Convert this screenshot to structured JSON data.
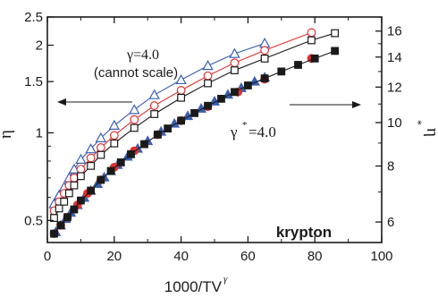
{
  "chart_data": {
    "type": "scatter",
    "xlabel": "1000/TV",
    "xlabel_sup": "γ",
    "ylabel_left": "η",
    "ylabel_right": "η",
    "ylabel_right_sup": "*",
    "xlim": [
      0,
      100
    ],
    "ylim_left": [
      0.42,
      2.5
    ],
    "ylim_right": [
      5.4,
      17.2
    ],
    "yscale": "log",
    "x_ticks": [
      0,
      20,
      40,
      60,
      80,
      100
    ],
    "y_ticks_left": [
      0.5,
      1,
      1.5,
      2,
      2.5
    ],
    "y_ticks_left_labels": [
      "0.5",
      "1",
      "1.5",
      "2",
      "2.5"
    ],
    "y_ticks_right": [
      6,
      8,
      10,
      12,
      14,
      16
    ],
    "grid": false,
    "annotations": {
      "gamma_line1": "γ=4.0",
      "gamma_line2": "(cannot scale)",
      "gamma_star_symbol": "γ",
      "gamma_star_sup": "*",
      "gamma_star_value": "=4.0",
      "material": "krypton"
    },
    "series": [
      {
        "axis": "left",
        "marker": "triangle-open",
        "color": "#3a5fb0",
        "line": true,
        "x": [
          2,
          3.5,
          5,
          6.5,
          8,
          10,
          13,
          16,
          20,
          26,
          32,
          40,
          48,
          56,
          65
        ],
        "y": [
          0.57,
          0.61,
          0.65,
          0.7,
          0.75,
          0.81,
          0.88,
          0.96,
          1.06,
          1.2,
          1.35,
          1.52,
          1.7,
          1.87,
          2.03
        ]
      },
      {
        "axis": "left",
        "marker": "circle-open",
        "color": "#e03030",
        "line": true,
        "x": [
          2,
          3.5,
          5,
          6.5,
          8,
          10,
          13,
          16,
          20,
          26,
          32,
          40,
          48,
          56,
          65,
          79
        ],
        "y": [
          0.54,
          0.58,
          0.62,
          0.66,
          0.7,
          0.75,
          0.82,
          0.89,
          0.98,
          1.11,
          1.24,
          1.4,
          1.57,
          1.74,
          1.92,
          2.21
        ]
      },
      {
        "axis": "left",
        "marker": "square-open",
        "color": "#1a1a1a",
        "line": true,
        "x": [
          2,
          3.5,
          5,
          6.5,
          8,
          10,
          13,
          16,
          20,
          26,
          32,
          40,
          48,
          56,
          65,
          79,
          86
        ],
        "y": [
          0.51,
          0.55,
          0.58,
          0.62,
          0.66,
          0.71,
          0.77,
          0.84,
          0.92,
          1.04,
          1.16,
          1.32,
          1.48,
          1.64,
          1.8,
          2.08,
          2.2
        ]
      },
      {
        "axis": "right",
        "marker": "triangle-filled",
        "color": "#3a5fb0",
        "line": false,
        "x": [
          2.5,
          4,
          5.5,
          7,
          9,
          11,
          13,
          15,
          17,
          19,
          21,
          24,
          27,
          30,
          34,
          38,
          42,
          46,
          50,
          54,
          58,
          62,
          65
        ],
        "y": [
          5.7,
          5.9,
          6.1,
          6.3,
          6.55,
          6.8,
          7.05,
          7.3,
          7.55,
          7.8,
          8.05,
          8.4,
          8.75,
          9.1,
          9.55,
          9.95,
          10.35,
          10.75,
          11.15,
          11.55,
          11.95,
          12.35,
          12.62
        ]
      },
      {
        "axis": "right",
        "marker": "circle-filled",
        "color": "#e03030",
        "line": false,
        "x": [
          2,
          4,
          6,
          9,
          12,
          16,
          20,
          26,
          33,
          40,
          48,
          57,
          65,
          79
        ],
        "y": [
          5.65,
          5.9,
          6.15,
          6.55,
          6.95,
          7.45,
          7.95,
          8.65,
          9.4,
          10.1,
          10.85,
          11.7,
          12.5,
          13.9
        ]
      },
      {
        "axis": "right",
        "marker": "square-filled",
        "color": "#1a1a1a",
        "line": true,
        "x": [
          2,
          4,
          6,
          8,
          10,
          13,
          16,
          19,
          22,
          25,
          29,
          33,
          36,
          40,
          44,
          48,
          52,
          56,
          60,
          65,
          70,
          75,
          80,
          86
        ],
        "y": [
          5.65,
          5.9,
          6.15,
          6.4,
          6.7,
          7.05,
          7.45,
          7.8,
          8.15,
          8.5,
          8.95,
          9.4,
          9.7,
          10.1,
          10.5,
          10.9,
          11.3,
          11.7,
          12.1,
          12.55,
          13.0,
          13.45,
          13.9,
          14.45
        ]
      }
    ]
  }
}
